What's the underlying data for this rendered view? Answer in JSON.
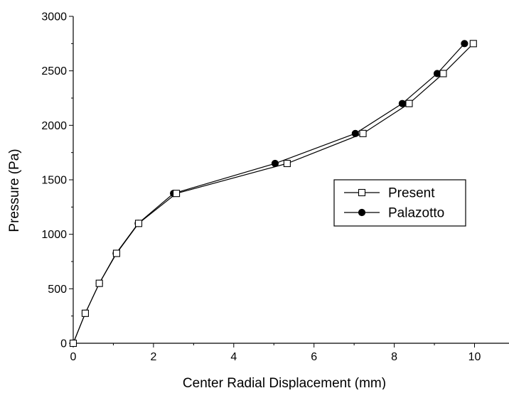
{
  "chart_data": {
    "type": "line",
    "title": "",
    "xlabel": "Center Radial Displacement (mm)",
    "ylabel": "Pressure (Pa)",
    "xlim": [
      0,
      11
    ],
    "ylim": [
      0,
      3000
    ],
    "x_ticks": [
      "0",
      "2",
      "4",
      "6",
      "8",
      "10"
    ],
    "y_ticks": [
      "0",
      "500",
      "1000",
      "1500",
      "2000",
      "2500",
      "3000"
    ],
    "grid": false,
    "legend_position": "center-right",
    "series": [
      {
        "name": "Present",
        "marker": "open-square",
        "color": "#000000",
        "x": [
          0,
          0.3,
          0.65,
          1.08,
          1.63,
          2.57,
          5.33,
          7.22,
          8.37,
          9.22,
          9.97
        ],
        "y": [
          0,
          275,
          550,
          825,
          1100,
          1375,
          1650,
          1925,
          2200,
          2475,
          2750
        ]
      },
      {
        "name": "Palazotto",
        "marker": "filled-circle",
        "color": "#000000",
        "x": [
          0,
          0.3,
          0.65,
          1.07,
          1.62,
          2.5,
          5.03,
          7.03,
          8.2,
          9.07,
          9.75
        ],
        "y": [
          0,
          275,
          550,
          825,
          1100,
          1375,
          1650,
          1925,
          2200,
          2475,
          2750
        ]
      }
    ]
  }
}
